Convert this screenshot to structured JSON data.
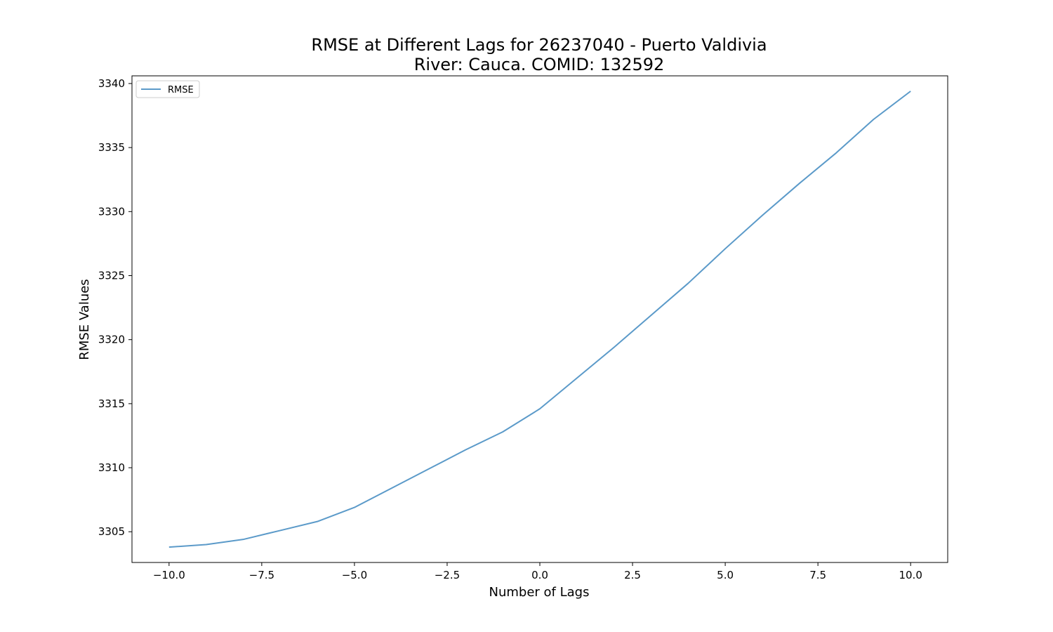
{
  "chart_data": {
    "type": "line",
    "title_line1": "RMSE at Different Lags for 26237040 - Puerto Valdivia",
    "title_line2": "River: Cauca. COMID: 132592",
    "xlabel": "Number of Lags",
    "ylabel": "RMSE Values",
    "xlim": [
      -11,
      11
    ],
    "ylim": [
      3302.6,
      3340.6
    ],
    "x_ticks": [
      -10.0,
      -7.5,
      -5.0,
      -2.5,
      0.0,
      2.5,
      5.0,
      7.5,
      10.0
    ],
    "x_tick_labels": [
      "−10.0",
      "−7.5",
      "−5.0",
      "−2.5",
      "0.0",
      "2.5",
      "5.0",
      "7.5",
      "10.0"
    ],
    "y_ticks": [
      3305,
      3310,
      3315,
      3320,
      3325,
      3330,
      3335,
      3340
    ],
    "y_tick_labels": [
      "3305",
      "3310",
      "3315",
      "3320",
      "3325",
      "3330",
      "3335",
      "3340"
    ],
    "legend": "upper-left",
    "grid": false,
    "series": [
      {
        "name": "RMSE",
        "color": "#5b9ac9",
        "x": [
          -10,
          -9,
          -8,
          -7,
          -6,
          -5,
          -4,
          -3,
          -2,
          -1,
          0,
          1,
          2,
          3,
          4,
          5,
          6,
          7,
          8,
          9,
          10
        ],
        "values": [
          3303.8,
          3304.0,
          3304.4,
          3305.1,
          3305.8,
          3306.9,
          3308.4,
          3309.9,
          3311.4,
          3312.8,
          3314.6,
          3317.0,
          3319.4,
          3321.9,
          3324.4,
          3327.1,
          3329.7,
          3332.2,
          3334.6,
          3337.2,
          3339.4
        ]
      }
    ]
  }
}
